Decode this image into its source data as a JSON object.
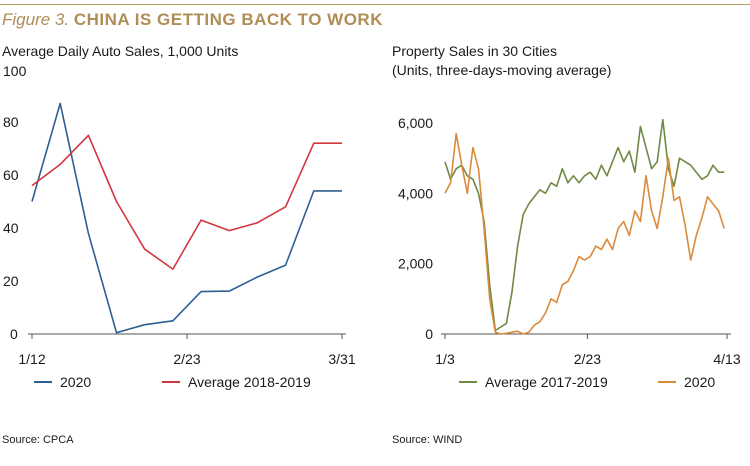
{
  "figure": {
    "number": "Figure 3.",
    "heading": "CHINA IS GETTING BACK TO WORK"
  },
  "colors": {
    "gold": "#b08d57",
    "blue": "#2e5f94",
    "red": "#d3363f",
    "green": "#6f8a45",
    "orange": "#d98b3a",
    "axis": "#555555"
  },
  "left": {
    "subtitle": "Average Daily Auto Sales, 1,000 Units",
    "source": "Source: CPCA"
  },
  "right": {
    "subtitle_line1": "Property Sales in 30 Cities",
    "subtitle_line2": "(Units, three-days-moving average)",
    "source": "Source: WIND"
  },
  "chart_data": [
    {
      "type": "line",
      "title": "Average Daily Auto Sales, 1,000 Units",
      "ylim": [
        0,
        100
      ],
      "y_ticks": [
        0,
        20,
        40,
        60,
        80,
        100
      ],
      "y_tick_labels": [
        "0",
        "20",
        "40",
        "60",
        "80",
        "100"
      ],
      "x_tick_labels": [
        "1/12",
        "2/23",
        "3/31"
      ],
      "x_tick_positions": [
        0,
        5.5,
        11
      ],
      "xlim": [
        0,
        11
      ],
      "grid": false,
      "legend_position": "bottom",
      "series": [
        {
          "name": "2020",
          "color": "#2e5f94",
          "x": [
            0,
            1,
            2,
            3,
            4,
            5,
            6,
            7,
            8,
            9,
            10,
            11
          ],
          "values": [
            50,
            87,
            38,
            0.5,
            3.5,
            5,
            16,
            16.2,
            21.5,
            26,
            54,
            54
          ]
        },
        {
          "name": "Average 2018-2019",
          "color": "#d3363f",
          "x": [
            0,
            1,
            2,
            3,
            4,
            5,
            6,
            7,
            8,
            9,
            10,
            11
          ],
          "values": [
            56,
            64,
            75,
            50,
            32,
            24.5,
            43,
            39,
            42,
            48,
            72,
            72
          ]
        }
      ]
    },
    {
      "type": "line",
      "title": "Property Sales in 30 Cities (Units, three-days-moving average)",
      "ylim": [
        0,
        6000
      ],
      "y_ticks": [
        0,
        2000,
        4000,
        6000
      ],
      "y_tick_labels": [
        "0",
        "2,000",
        "4,000",
        "6,000"
      ],
      "x_tick_labels": [
        "1/3",
        "2/23",
        "4/13"
      ],
      "x_tick_positions": [
        0,
        51,
        101
      ],
      "xlim": [
        0,
        101
      ],
      "grid": false,
      "legend_position": "bottom",
      "series": [
        {
          "name": "Average 2017-2019",
          "color": "#6f8a45",
          "x": [
            0,
            2,
            4,
            6,
            8,
            10,
            12,
            14,
            16,
            18,
            20,
            22,
            24,
            26,
            28,
            30,
            32,
            34,
            36,
            38,
            40,
            42,
            44,
            46,
            48,
            50,
            52,
            54,
            56,
            58,
            60,
            62,
            64,
            66,
            68,
            70,
            72,
            74,
            76,
            78,
            80,
            82,
            84,
            86,
            88,
            90,
            92,
            94,
            96,
            98,
            100
          ],
          "values": [
            4900,
            4400,
            4700,
            4800,
            4500,
            4400,
            4000,
            3200,
            1400,
            100,
            200,
            300,
            1200,
            2500,
            3400,
            3700,
            3900,
            4100,
            4000,
            4300,
            4200,
            4700,
            4300,
            4500,
            4300,
            4500,
            4600,
            4400,
            4800,
            4500,
            4900,
            5300,
            4900,
            5200,
            4600,
            5900,
            5300,
            4700,
            4900,
            6100,
            4700,
            4200,
            5000,
            4900,
            4800,
            4600,
            4400,
            4500,
            4800,
            4600,
            4600
          ]
        },
        {
          "name": "2020",
          "color": "#d98b3a",
          "x": [
            0,
            2,
            4,
            6,
            8,
            10,
            12,
            14,
            16,
            18,
            20,
            22,
            24,
            26,
            28,
            30,
            32,
            34,
            36,
            38,
            40,
            42,
            44,
            46,
            48,
            50,
            52,
            54,
            56,
            58,
            60,
            62,
            64,
            66,
            68,
            70,
            72,
            74,
            76,
            78,
            80,
            82,
            84,
            86,
            88,
            90,
            92,
            94,
            96,
            98,
            100
          ],
          "values": [
            4000,
            4300,
            5700,
            4800,
            4000,
            5300,
            4700,
            3000,
            1000,
            50,
            0,
            20,
            50,
            80,
            0,
            50,
            250,
            350,
            600,
            1000,
            900,
            1400,
            1500,
            1800,
            2200,
            2100,
            2200,
            2500,
            2400,
            2700,
            2400,
            3000,
            3200,
            2800,
            3500,
            3200,
            4500,
            3500,
            3000,
            3900,
            5000,
            3800,
            3900,
            3100,
            2100,
            2800,
            3300,
            3900,
            3700,
            3500,
            3000
          ]
        }
      ]
    }
  ]
}
